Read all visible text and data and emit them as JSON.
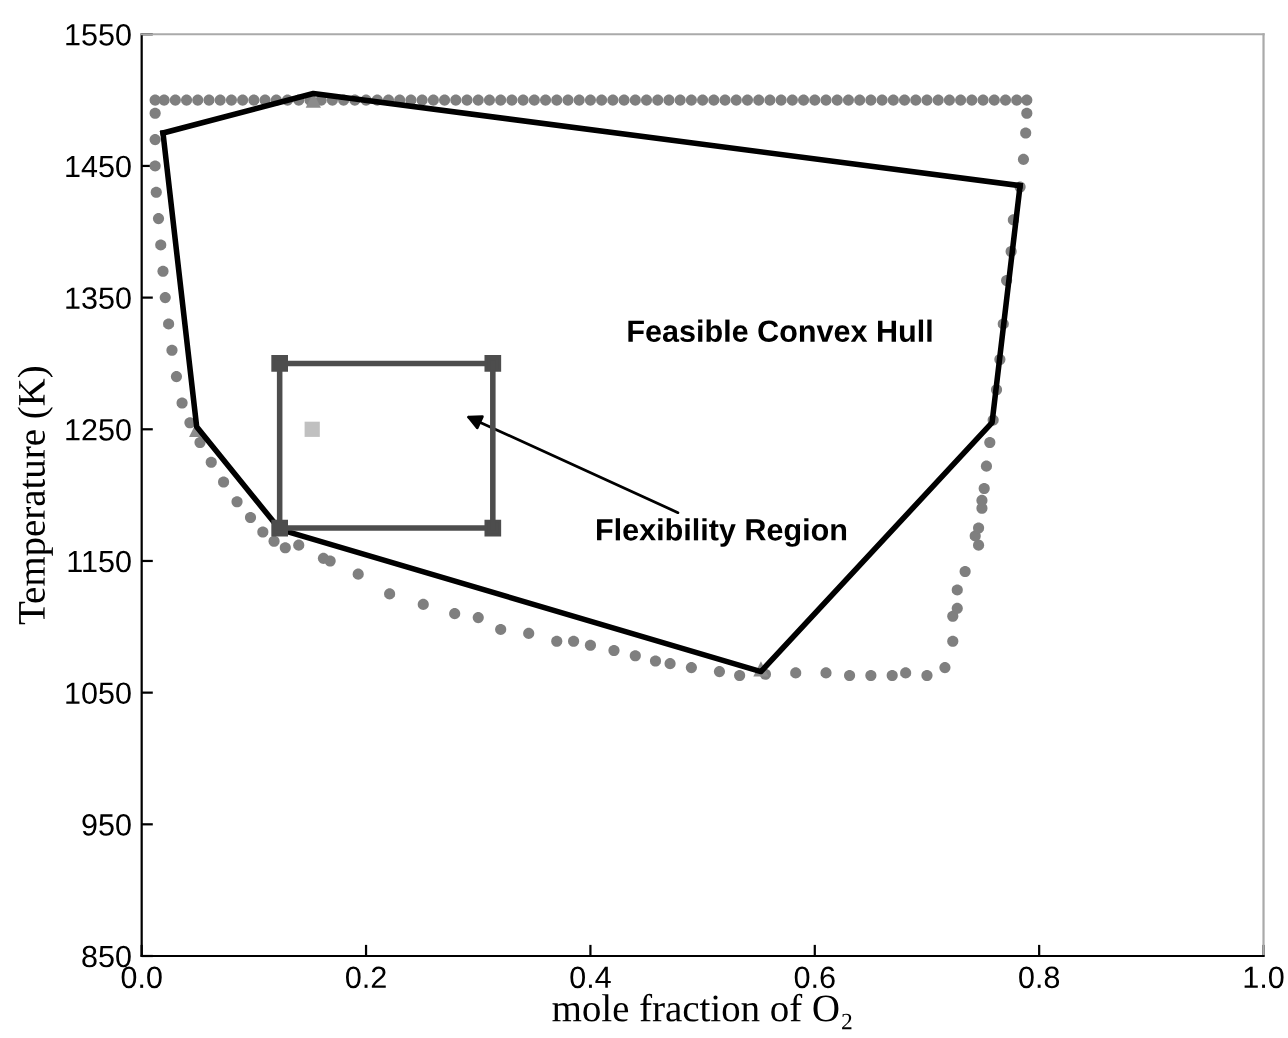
{
  "chart_data": {
    "type": "line",
    "xlabel": "mole fraction of O₂",
    "ylabel": "Temperature (K)",
    "xlim": [
      0,
      1
    ],
    "ylim": [
      850,
      1550
    ],
    "xticks": [
      {
        "value": 0,
        "label": "0.0"
      },
      0.2,
      0.4,
      0.6,
      0.8,
      {
        "value": 1,
        "label": "1.0"
      }
    ],
    "yticks": [
      850,
      950,
      1050,
      1150,
      1250,
      1350,
      1450,
      1550
    ],
    "grid": false,
    "legend": false,
    "annotations": [
      "Feasible Convex Hull",
      "Flexibility Region"
    ],
    "series": [
      {
        "type": "scatter",
        "marker": "circle",
        "color": "#7f7f7f",
        "x": [
          0.012,
          0.02,
          0.03,
          0.04,
          0.05,
          0.06,
          0.07,
          0.08,
          0.09,
          0.1,
          0.11,
          0.12,
          0.13,
          0.14,
          0.15,
          0.16,
          0.17,
          0.18,
          0.19,
          0.2,
          0.21,
          0.22,
          0.23,
          0.24,
          0.25,
          0.26,
          0.27,
          0.28,
          0.29,
          0.3,
          0.31,
          0.32,
          0.33,
          0.34,
          0.35,
          0.36,
          0.37,
          0.38,
          0.39,
          0.4,
          0.41,
          0.42,
          0.43,
          0.44,
          0.45,
          0.46,
          0.47,
          0.48,
          0.49,
          0.5,
          0.51,
          0.52,
          0.53,
          0.54,
          0.55,
          0.56,
          0.57,
          0.58,
          0.59,
          0.6,
          0.61,
          0.62,
          0.63,
          0.64,
          0.65,
          0.66,
          0.67,
          0.68,
          0.69,
          0.7,
          0.71,
          0.72,
          0.73,
          0.74,
          0.75,
          0.76,
          0.77,
          0.78,
          0.789,
          0.012,
          0.012,
          0.012,
          0.013,
          0.015,
          0.017,
          0.019,
          0.021,
          0.024,
          0.027,
          0.031,
          0.036,
          0.043,
          0.052,
          0.062,
          0.073,
          0.085,
          0.097,
          0.108,
          0.118,
          0.128,
          0.14,
          0.162,
          0.168,
          0.193,
          0.221,
          0.251,
          0.279,
          0.3,
          0.32,
          0.345,
          0.37,
          0.385,
          0.4,
          0.421,
          0.44,
          0.458,
          0.471,
          0.49,
          0.515,
          0.533,
          0.556,
          0.583,
          0.61,
          0.631,
          0.65,
          0.669,
          0.681,
          0.7,
          0.716,
          0.723,
          0.723,
          0.727,
          0.727,
          0.734,
          0.746,
          0.743,
          0.749,
          0.789,
          0.788,
          0.786,
          0.783,
          0.777,
          0.775,
          0.771,
          0.768,
          0.765,
          0.762,
          0.759,
          0.756,
          0.753,
          0.751,
          0.749,
          0.746
        ],
        "values": [
          1500,
          1500,
          1500,
          1500,
          1500,
          1500,
          1500,
          1500,
          1500,
          1500,
          1500,
          1500,
          1500,
          1500,
          1500,
          1500,
          1500,
          1500,
          1500,
          1500,
          1500,
          1500,
          1500,
          1500,
          1500,
          1500,
          1500,
          1500,
          1500,
          1500,
          1500,
          1500,
          1500,
          1500,
          1500,
          1500,
          1500,
          1500,
          1500,
          1500,
          1500,
          1500,
          1500,
          1500,
          1500,
          1500,
          1500,
          1500,
          1500,
          1500,
          1500,
          1500,
          1500,
          1500,
          1500,
          1500,
          1500,
          1500,
          1500,
          1500,
          1500,
          1500,
          1500,
          1500,
          1500,
          1500,
          1500,
          1500,
          1500,
          1500,
          1500,
          1500,
          1500,
          1500,
          1500,
          1500,
          1500,
          1500,
          1500,
          1490,
          1470,
          1450,
          1430,
          1410,
          1390,
          1370,
          1350,
          1330,
          1310,
          1290,
          1270,
          1255,
          1240,
          1225,
          1210,
          1195,
          1183,
          1172,
          1165,
          1160,
          1162,
          1152,
          1150,
          1140,
          1125,
          1117,
          1110,
          1107,
          1098,
          1095,
          1089,
          1089,
          1086,
          1082,
          1078,
          1074,
          1072,
          1069,
          1066,
          1063,
          1064,
          1065,
          1065,
          1063,
          1063,
          1063,
          1065,
          1063,
          1069,
          1089,
          1108,
          1114,
          1128,
          1142,
          1162,
          1169,
          1196,
          1490,
          1475,
          1455,
          1434,
          1409,
          1385,
          1363,
          1330,
          1303,
          1280,
          1257,
          1240,
          1222,
          1205,
          1190,
          1175
        ]
      },
      {
        "marker": "none",
        "color": "#000000",
        "x": [
          0.019,
          0.153,
          0.783
        ],
        "values": [
          1475,
          1505,
          1435
        ]
      },
      {
        "marker": "none",
        "color": "#000000",
        "x": [
          0.019,
          0.049,
          0.123,
          0.552,
          0.758,
          0.783
        ],
        "values": [
          1475,
          1252,
          1174,
          1066,
          1255,
          1435
        ]
      },
      {
        "type": "scatter",
        "marker": "triangle",
        "color": "#8c8c8c",
        "x": [
          0.153,
          0.049,
          0.552
        ],
        "values": [
          1500,
          1250,
          1068
        ]
      },
      {
        "type": "line",
        "marker": "square",
        "color": "#4d4d4d",
        "x": [
          0.123,
          0.313
        ],
        "values": [
          1300,
          1300
        ]
      },
      {
        "type": "line",
        "marker": "square",
        "color": "#4d4d4d",
        "x": [
          0.123,
          0.313
        ],
        "values": [
          1175,
          1175
        ]
      },
      {
        "type": "line",
        "marker": "none",
        "color": "#4d4d4d",
        "x": [
          0.123,
          0.123
        ],
        "values": [
          1175,
          1300
        ]
      },
      {
        "type": "line",
        "marker": "none",
        "color": "#4d4d4d",
        "x": [
          0.313,
          0.313
        ],
        "values": [
          1175,
          1300
        ]
      },
      {
        "type": "scatter",
        "marker": "square",
        "color": "#c0c0c0",
        "x": [
          0.152
        ],
        "values": [
          1250
        ]
      }
    ]
  }
}
